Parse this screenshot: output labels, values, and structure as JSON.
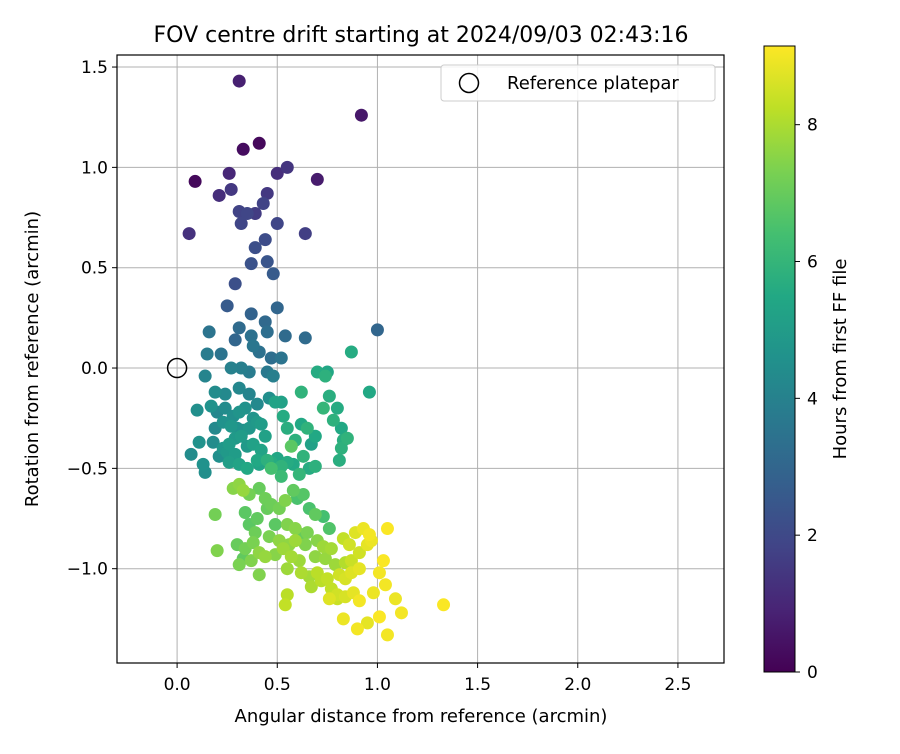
{
  "chart_data": {
    "type": "scatter",
    "title": "FOV centre drift starting at 2024/09/03 02:43:16",
    "xlabel": "Angular distance from reference (arcmin)",
    "ylabel": "Rotation from reference (arcmin)",
    "xlim": [
      -0.3,
      2.73
    ],
    "ylim": [
      -1.47,
      1.56
    ],
    "xticks": [
      0.0,
      0.5,
      1.0,
      1.5,
      2.0,
      2.5
    ],
    "xtick_labels": [
      "0.0",
      "0.5",
      "1.0",
      "1.5",
      "2.0",
      "2.5"
    ],
    "yticks": [
      -1.0,
      -0.5,
      0.0,
      0.5,
      1.0,
      1.5
    ],
    "ytick_labels": [
      "−1.0",
      "−0.5",
      "0.0",
      "0.5",
      "1.0",
      "1.5"
    ],
    "grid": true,
    "legend": {
      "position": "top-right",
      "entries": [
        "Reference platepar"
      ]
    },
    "reference_point": {
      "x": 0.0,
      "y": 0.0,
      "label": "Reference platepar"
    },
    "colorbar": {
      "label": "Hours from first FF file",
      "colormap": "viridis",
      "range": [
        0,
        9.15
      ],
      "ticks": [
        0,
        2,
        4,
        6,
        8
      ],
      "tick_labels": [
        "0",
        "2",
        "4",
        "6",
        "8"
      ]
    },
    "points": [
      [
        0.09,
        0.93,
        0.2
      ],
      [
        0.31,
        1.43,
        0.8
      ],
      [
        0.33,
        1.09,
        0.3
      ],
      [
        0.41,
        1.12,
        0.2
      ],
      [
        0.92,
        1.26,
        0.6
      ],
      [
        0.7,
        0.94,
        0.7
      ],
      [
        0.26,
        0.97,
        1.0
      ],
      [
        0.21,
        0.86,
        1.2
      ],
      [
        0.27,
        0.89,
        1.5
      ],
      [
        0.5,
        0.97,
        1.2
      ],
      [
        0.55,
        1.0,
        1.4
      ],
      [
        0.45,
        0.87,
        1.5
      ],
      [
        0.06,
        0.67,
        1.3
      ],
      [
        0.43,
        0.82,
        1.8
      ],
      [
        0.31,
        0.78,
        1.8
      ],
      [
        0.35,
        0.77,
        1.9
      ],
      [
        0.39,
        0.77,
        1.6
      ],
      [
        0.32,
        0.72,
        1.9
      ],
      [
        0.5,
        0.72,
        1.9
      ],
      [
        0.64,
        0.67,
        1.7
      ],
      [
        0.39,
        0.6,
        2.2
      ],
      [
        0.44,
        0.64,
        2.1
      ],
      [
        0.37,
        0.52,
        2.3
      ],
      [
        0.45,
        0.53,
        2.4
      ],
      [
        0.48,
        0.47,
        2.6
      ],
      [
        0.29,
        0.42,
        2.2
      ],
      [
        0.25,
        0.31,
        2.6
      ],
      [
        0.37,
        0.27,
        2.9
      ],
      [
        0.5,
        0.3,
        3.0
      ],
      [
        0.31,
        0.2,
        3.2
      ],
      [
        0.44,
        0.23,
        3.1
      ],
      [
        0.16,
        0.18,
        3.5
      ],
      [
        0.37,
        0.16,
        3.4
      ],
      [
        0.45,
        0.18,
        3.3
      ],
      [
        0.54,
        0.16,
        3.2
      ],
      [
        0.29,
        0.14,
        3.0
      ],
      [
        0.64,
        0.15,
        3.2
      ],
      [
        1.0,
        0.19,
        3.0
      ],
      [
        0.15,
        0.07,
        3.8
      ],
      [
        0.22,
        0.07,
        3.5
      ],
      [
        0.38,
        0.11,
        3.6
      ],
      [
        0.41,
        0.08,
        3.4
      ],
      [
        0.47,
        0.05,
        3.3
      ],
      [
        0.52,
        0.05,
        3.5
      ],
      [
        0.27,
        0.0,
        4.0
      ],
      [
        0.32,
        0.0,
        3.9
      ],
      [
        0.36,
        -0.02,
        3.8
      ],
      [
        0.45,
        -0.02,
        3.7
      ],
      [
        0.48,
        -0.04,
        3.9
      ],
      [
        0.14,
        -0.04,
        4.1
      ],
      [
        0.7,
        -0.02,
        5.6
      ],
      [
        0.75,
        -0.02,
        5.4
      ],
      [
        0.74,
        -0.04,
        5.8
      ],
      [
        0.87,
        0.08,
        5.6
      ],
      [
        0.96,
        -0.12,
        5.5
      ],
      [
        0.19,
        -0.12,
        4.4
      ],
      [
        0.24,
        -0.13,
        4.3
      ],
      [
        0.31,
        -0.1,
        4.2
      ],
      [
        0.36,
        -0.13,
        4.1
      ],
      [
        0.4,
        -0.18,
        4.3
      ],
      [
        0.1,
        -0.21,
        4.5
      ],
      [
        0.17,
        -0.19,
        4.6
      ],
      [
        0.2,
        -0.22,
        4.2
      ],
      [
        0.24,
        -0.2,
        4.4
      ],
      [
        0.28,
        -0.24,
        4.5
      ],
      [
        0.31,
        -0.22,
        4.7
      ],
      [
        0.34,
        -0.2,
        4.6
      ],
      [
        0.38,
        -0.25,
        4.7
      ],
      [
        0.46,
        -0.15,
        4.5
      ],
      [
        0.49,
        -0.17,
        5.3
      ],
      [
        0.52,
        -0.17,
        5.2
      ],
      [
        0.53,
        -0.24,
        5.6
      ],
      [
        0.62,
        -0.12,
        5.9
      ],
      [
        0.65,
        -0.3,
        5.9
      ],
      [
        0.73,
        -0.2,
        6.0
      ],
      [
        0.76,
        -0.14,
        5.7
      ],
      [
        0.8,
        -0.2,
        5.6
      ],
      [
        0.78,
        -0.26,
        5.8
      ],
      [
        0.82,
        -0.3,
        5.5
      ],
      [
        0.19,
        -0.3,
        4.3
      ],
      [
        0.23,
        -0.27,
        4.6
      ],
      [
        0.27,
        -0.29,
        4.8
      ],
      [
        0.3,
        -0.3,
        4.6
      ],
      [
        0.33,
        -0.31,
        4.4
      ],
      [
        0.36,
        -0.3,
        4.8
      ],
      [
        0.4,
        -0.27,
        4.9
      ],
      [
        0.42,
        -0.28,
        5.0
      ],
      [
        0.44,
        -0.34,
        5.2
      ],
      [
        0.55,
        -0.3,
        5.7
      ],
      [
        0.59,
        -0.36,
        5.8
      ],
      [
        0.62,
        -0.28,
        5.5
      ],
      [
        0.67,
        -0.38,
        5.2
      ],
      [
        0.69,
        -0.34,
        5.5
      ],
      [
        0.83,
        -0.36,
        5.7
      ],
      [
        0.85,
        -0.35,
        5.9
      ],
      [
        0.82,
        -0.4,
        5.8
      ],
      [
        0.81,
        -0.46,
        5.7
      ],
      [
        0.11,
        -0.37,
        4.6
      ],
      [
        0.18,
        -0.37,
        4.4
      ],
      [
        0.23,
        -0.4,
        4.8
      ],
      [
        0.26,
        -0.38,
        5.0
      ],
      [
        0.29,
        -0.35,
        4.9
      ],
      [
        0.32,
        -0.34,
        5.0
      ],
      [
        0.35,
        -0.39,
        4.9
      ],
      [
        0.38,
        -0.38,
        5.2
      ],
      [
        0.42,
        -0.41,
        5.3
      ],
      [
        0.57,
        -0.39,
        6.8
      ],
      [
        0.63,
        -0.44,
        5.9
      ],
      [
        0.07,
        -0.43,
        4.4
      ],
      [
        0.21,
        -0.44,
        4.5
      ],
      [
        0.25,
        -0.42,
        4.9
      ],
      [
        0.29,
        -0.43,
        5.0
      ],
      [
        0.13,
        -0.48,
        4.6
      ],
      [
        0.14,
        -0.52,
        4.5
      ],
      [
        0.26,
        -0.47,
        5.1
      ],
      [
        0.31,
        -0.48,
        5.3
      ],
      [
        0.35,
        -0.5,
        5.5
      ],
      [
        0.4,
        -0.46,
        5.5
      ],
      [
        0.41,
        -0.48,
        5.3
      ],
      [
        0.45,
        -0.46,
        5.8
      ],
      [
        0.47,
        -0.47,
        5.6
      ],
      [
        0.5,
        -0.45,
        5.4
      ],
      [
        0.52,
        -0.49,
        5.9
      ],
      [
        0.55,
        -0.47,
        5.6
      ],
      [
        0.58,
        -0.48,
        5.5
      ],
      [
        0.61,
        -0.53,
        6.0
      ],
      [
        0.66,
        -0.5,
        5.6
      ],
      [
        0.69,
        -0.49,
        5.8
      ],
      [
        0.47,
        -0.5,
        6.4
      ],
      [
        0.52,
        -0.54,
        6.2
      ],
      [
        0.28,
        -0.6,
        7.5
      ],
      [
        0.31,
        -0.58,
        7.6
      ],
      [
        0.33,
        -0.61,
        7.7
      ],
      [
        0.36,
        -0.63,
        7.2
      ],
      [
        0.41,
        -0.6,
        7.0
      ],
      [
        0.44,
        -0.65,
        7.1
      ],
      [
        0.47,
        -0.68,
        7.1
      ],
      [
        0.51,
        -0.7,
        7.2
      ],
      [
        0.54,
        -0.66,
        7.4
      ],
      [
        0.58,
        -0.61,
        6.9
      ],
      [
        0.6,
        -0.65,
        6.5
      ],
      [
        0.63,
        -0.63,
        6.7
      ],
      [
        0.66,
        -0.7,
        6.5
      ],
      [
        0.69,
        -0.73,
        6.9
      ],
      [
        0.73,
        -0.74,
        6.4
      ],
      [
        0.76,
        -0.8,
        6.6
      ],
      [
        0.19,
        -0.73,
        7.2
      ],
      [
        0.34,
        -0.72,
        6.8
      ],
      [
        0.4,
        -0.75,
        6.9
      ],
      [
        0.45,
        -0.7,
        7.0
      ],
      [
        0.49,
        -0.78,
        6.8
      ],
      [
        0.55,
        -0.78,
        7.4
      ],
      [
        0.59,
        -0.8,
        7.5
      ],
      [
        0.62,
        -0.83,
        7.0
      ],
      [
        0.65,
        -0.82,
        7.3
      ],
      [
        0.36,
        -0.78,
        6.8
      ],
      [
        0.39,
        -0.82,
        7.1
      ],
      [
        0.46,
        -0.84,
        7.3
      ],
      [
        0.51,
        -0.86,
        7.6
      ],
      [
        0.56,
        -0.88,
        7.6
      ],
      [
        0.59,
        -0.86,
        7.8
      ],
      [
        0.64,
        -0.88,
        7.4
      ],
      [
        0.7,
        -0.86,
        7.5
      ],
      [
        0.73,
        -0.89,
        7.8
      ],
      [
        0.77,
        -0.9,
        7.9
      ],
      [
        0.83,
        -0.85,
        8.3
      ],
      [
        0.86,
        -0.88,
        8.5
      ],
      [
        0.89,
        -0.82,
        8.7
      ],
      [
        0.93,
        -0.8,
        8.9
      ],
      [
        0.96,
        -0.83,
        9.0
      ],
      [
        1.05,
        -0.8,
        9.1
      ],
      [
        0.3,
        -0.88,
        7.0
      ],
      [
        0.34,
        -0.9,
        7.2
      ],
      [
        0.38,
        -0.87,
        7.3
      ],
      [
        0.41,
        -0.92,
        7.6
      ],
      [
        0.2,
        -0.91,
        7.4
      ],
      [
        0.33,
        -0.95,
        6.9
      ],
      [
        0.37,
        -0.96,
        7.4
      ],
      [
        0.44,
        -0.94,
        7.7
      ],
      [
        0.49,
        -0.93,
        7.5
      ],
      [
        0.53,
        -0.9,
        7.8
      ],
      [
        0.57,
        -0.94,
        7.9
      ],
      [
        0.61,
        -0.96,
        7.8
      ],
      [
        0.69,
        -0.94,
        7.6
      ],
      [
        0.74,
        -0.95,
        7.7
      ],
      [
        0.79,
        -0.98,
        7.8
      ],
      [
        0.84,
        -0.97,
        8.1
      ],
      [
        0.87,
        -0.96,
        8.4
      ],
      [
        0.91,
        -0.92,
        8.5
      ],
      [
        0.95,
        -0.88,
        8.8
      ],
      [
        0.97,
        -0.86,
        8.9
      ],
      [
        0.31,
        -0.98,
        7.3
      ],
      [
        0.55,
        -1.0,
        7.8
      ],
      [
        0.62,
        -1.02,
        8.0
      ],
      [
        0.66,
        -1.04,
        7.9
      ],
      [
        0.7,
        -1.02,
        8.2
      ],
      [
        0.75,
        -1.05,
        8.3
      ],
      [
        0.81,
        -1.03,
        8.5
      ],
      [
        0.84,
        -1.05,
        8.6
      ],
      [
        0.87,
        -1.02,
        8.7
      ],
      [
        0.91,
        -1.0,
        8.8
      ],
      [
        0.41,
        -1.03,
        7.4
      ],
      [
        0.67,
        -1.09,
        8.0
      ],
      [
        0.72,
        -1.06,
        8.2
      ],
      [
        0.77,
        -1.1,
        8.3
      ],
      [
        0.8,
        -1.13,
        8.5
      ],
      [
        0.84,
        -1.14,
        8.6
      ],
      [
        0.88,
        -1.12,
        8.8
      ],
      [
        0.76,
        -1.15,
        8.7
      ],
      [
        0.8,
        -1.15,
        8.4
      ],
      [
        0.55,
        -1.13,
        8.2
      ],
      [
        0.54,
        -1.18,
        8.3
      ],
      [
        1.01,
        -1.02,
        9.0
      ],
      [
        1.03,
        -0.96,
        9.1
      ],
      [
        1.04,
        -1.08,
        9.0
      ],
      [
        1.09,
        -1.15,
        8.9
      ],
      [
        1.12,
        -1.22,
        9.0
      ],
      [
        1.33,
        -1.18,
        9.1
      ],
      [
        0.83,
        -1.25,
        8.9
      ],
      [
        0.9,
        -1.3,
        9.0
      ],
      [
        0.95,
        -1.27,
        8.8
      ],
      [
        1.01,
        -1.24,
        9.1
      ],
      [
        1.05,
        -1.33,
        9.0
      ],
      [
        0.91,
        -1.16,
        9.0
      ],
      [
        0.98,
        -1.12,
        8.9
      ]
    ]
  }
}
